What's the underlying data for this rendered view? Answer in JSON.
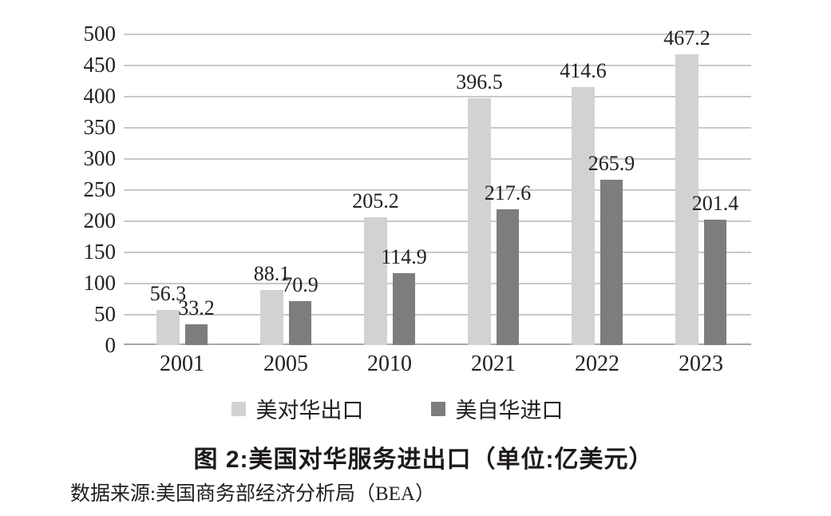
{
  "figure": {
    "title": "图 2:美国对华服务进出口（单位:亿美元）",
    "source": "数据来源:美国商务部经济分析局（BEA）"
  },
  "colors": {
    "export_series": "#d2d2d2",
    "import_series": "#7d7d7d",
    "gridline": "#c9c9c9",
    "axis_line": "#a8a8a8",
    "text": "#24201f"
  },
  "legend": {
    "items": [
      {
        "label": "美对华出口",
        "color": "#d2d2d2"
      },
      {
        "label": "美自华进口",
        "color": "#7d7d7d"
      }
    ]
  },
  "chart_data": {
    "type": "bar",
    "categories": [
      "2001",
      "2005",
      "2010",
      "2021",
      "2022",
      "2023"
    ],
    "series": [
      {
        "name": "美对华出口",
        "color": "#d2d2d2",
        "values": [
          56.3,
          88.1,
          205.2,
          396.5,
          414.6,
          467.2
        ]
      },
      {
        "name": "美自华进口",
        "color": "#7d7d7d",
        "values": [
          33.2,
          70.9,
          114.9,
          217.6,
          265.9,
          201.4
        ]
      }
    ],
    "title": "图 2:美国对华服务进出口（单位:亿美元）",
    "xlabel": "",
    "ylabel": "",
    "ylim": [
      0,
      500
    ],
    "yticks": [
      0,
      50,
      100,
      150,
      200,
      250,
      300,
      350,
      400,
      450,
      500
    ],
    "grid": true,
    "data_labels": true,
    "legend_position": "bottom",
    "source": "数据来源:美国商务部经济分析局（BEA）"
  }
}
